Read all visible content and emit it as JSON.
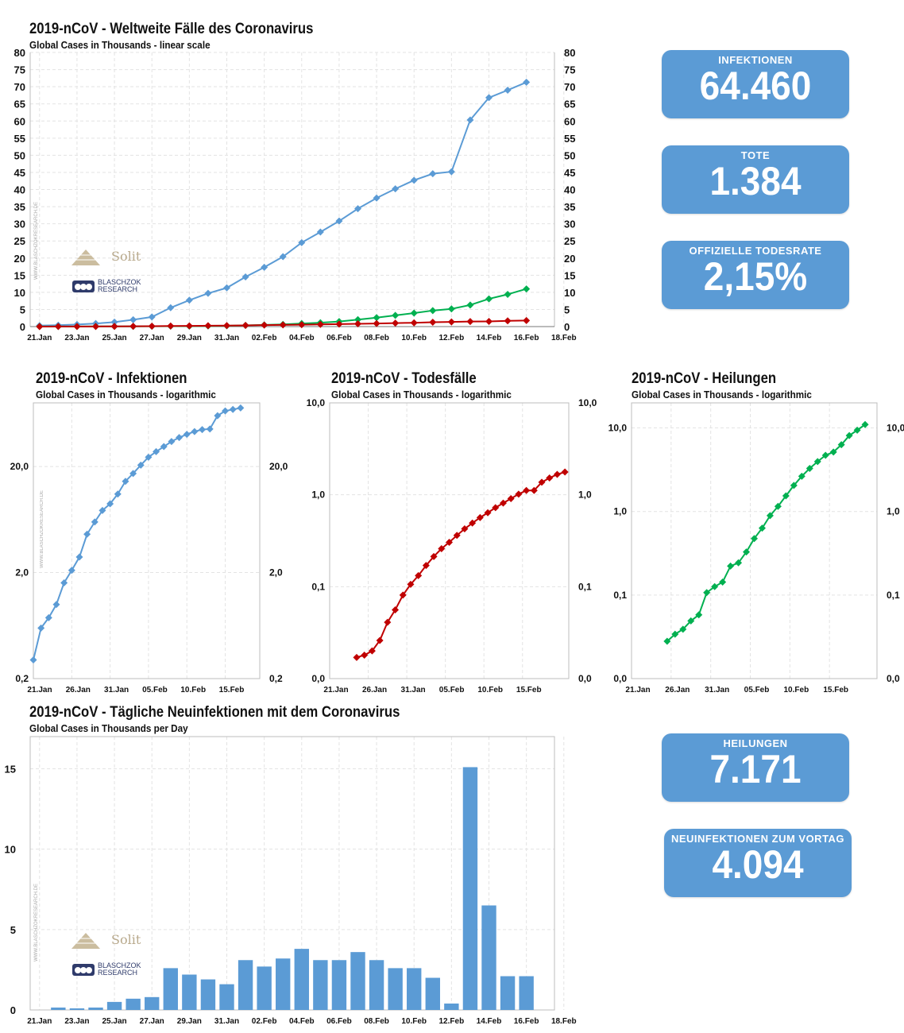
{
  "watermark": "WWW.BLASCHZOKRESEARCH.DE",
  "logos": {
    "solit": "Solit",
    "blaschzok_line1": "BLASCHZOK",
    "blaschzok_line2": "RESEARCH"
  },
  "colors": {
    "infections": "#5b9bd5",
    "deaths": "#c00000",
    "recovered": "#00b050",
    "card": "#5b9bd5"
  },
  "kpis": [
    {
      "label": "INFEKTIONEN",
      "value": "64.460"
    },
    {
      "label": "TOTE",
      "value": "1.384"
    },
    {
      "label": "OFFIZIELLE  TODESRATE",
      "value": "2,15%"
    },
    {
      "label": "HEILUNGEN",
      "value": "7.171"
    },
    {
      "label": "NEUINFEKTIONEN ZUM VORTAG",
      "value": "4.094"
    }
  ],
  "chart_data": [
    {
      "type": "line",
      "title": "2019-nCoV - Weltweite Fälle des Coronavirus",
      "subtitle": "Global Cases in Thousands - linear scale",
      "x_ticks": [
        "21.Jan",
        "23.Jan",
        "25.Jan",
        "27.Jan",
        "29.Jan",
        "31.Jan",
        "02.Feb",
        "04.Feb",
        "06.Feb",
        "08.Feb",
        "10.Feb",
        "12.Feb",
        "14.Feb",
        "16.Feb",
        "18.Feb"
      ],
      "x_range": [
        "21.Jan",
        "18.Feb"
      ],
      "ylim": [
        0,
        80
      ],
      "y_ticks": [
        0,
        5,
        10,
        15,
        20,
        25,
        30,
        35,
        40,
        45,
        50,
        55,
        60,
        65,
        70,
        75,
        80
      ],
      "grid": true,
      "series": [
        {
          "color": "#5b9bd5",
          "values": [
            0.3,
            0.4,
            0.6,
            0.9,
            1.3,
            2.0,
            2.8,
            5.5,
            7.7,
            9.7,
            11.3,
            14.5,
            17.3,
            20.4,
            24.5,
            27.6,
            30.8,
            34.4,
            37.5,
            40.2,
            42.7,
            44.6,
            45.2,
            60.3,
            66.8,
            69.0,
            71.3
          ]
        },
        {
          "color": "#00b050",
          "values": [
            0.02,
            0.03,
            0.04,
            0.05,
            0.06,
            0.07,
            0.1,
            0.11,
            0.13,
            0.18,
            0.24,
            0.34,
            0.48,
            0.63,
            0.89,
            1.12,
            1.49,
            2.03,
            2.61,
            3.28,
            3.94,
            4.68,
            5.15,
            6.3,
            8.1,
            9.4,
            11.0
          ]
        },
        {
          "color": "#c00000",
          "values": [
            0.009,
            0.017,
            0.026,
            0.04,
            0.06,
            0.08,
            0.13,
            0.17,
            0.21,
            0.26,
            0.3,
            0.36,
            0.43,
            0.49,
            0.56,
            0.64,
            0.72,
            0.81,
            0.91,
            1.02,
            1.11,
            1.27,
            1.36,
            1.49,
            1.52,
            1.67,
            1.78
          ]
        }
      ]
    },
    {
      "type": "line",
      "title": "2019-nCoV - Infektionen",
      "subtitle": "Global Cases in Thousands - logarithmic",
      "scale": "log",
      "x_ticks": [
        "21.Jan",
        "26.Jan",
        "31.Jan",
        "05.Feb",
        "10.Feb",
        "15.Feb"
      ],
      "y_ticks": [
        "0,2",
        "2,0",
        "20,0"
      ],
      "y_values": [
        0.2,
        2.0,
        20.0
      ],
      "grid": true,
      "series": [
        {
          "color": "#5b9bd5",
          "values": [
            0.3,
            0.6,
            0.75,
            1.0,
            1.6,
            2.1,
            2.8,
            4.6,
            6.0,
            7.7,
            8.9,
            11.0,
            14.5,
            17.2,
            20.6,
            24.5,
            27.6,
            30.8,
            34.4,
            37.5,
            40.2,
            42.7,
            44.6,
            45.2,
            60.3,
            66.8,
            69.0,
            71.3
          ]
        }
      ]
    },
    {
      "type": "line",
      "title": "2019-nCoV - Todesfälle",
      "subtitle": "Global Cases in Thousands - logarithmic",
      "scale": "log",
      "x_ticks": [
        "21.Jan",
        "26.Jan",
        "31.Jan",
        "05.Feb",
        "10.Feb",
        "15.Feb"
      ],
      "y_ticks": [
        "0,0",
        "0,1",
        "1,0",
        "10,0"
      ],
      "y_values": [
        0.01,
        0.1,
        1.0,
        10.0
      ],
      "grid": true,
      "series": [
        {
          "color": "#c00000",
          "values": [
            0.017,
            0.018,
            0.02,
            0.026,
            0.041,
            0.056,
            0.081,
            0.106,
            0.132,
            0.17,
            0.213,
            0.259,
            0.304,
            0.362,
            0.426,
            0.492,
            0.565,
            0.638,
            0.724,
            0.813,
            0.908,
            1.017,
            1.115,
            1.114,
            1.368,
            1.523,
            1.666,
            1.77
          ]
        }
      ]
    },
    {
      "type": "line",
      "title": "2019-nCoV - Heilungen",
      "subtitle": "Global Cases in Thousands - logarithmic",
      "scale": "log",
      "x_ticks": [
        "21.Jan",
        "26.Jan",
        "31.Jan",
        "05.Feb",
        "10.Feb",
        "15.Feb"
      ],
      "y_ticks": [
        "0,0",
        "0,1",
        "1,0",
        "10,0"
      ],
      "y_values": [
        0.01,
        0.1,
        1.0,
        10.0
      ],
      "grid": true,
      "series": [
        {
          "color": "#00b050",
          "values": [
            0.028,
            0.034,
            0.039,
            0.049,
            0.058,
            0.107,
            0.126,
            0.143,
            0.222,
            0.243,
            0.328,
            0.475,
            0.632,
            0.892,
            1.152,
            1.54,
            2.05,
            2.64,
            3.28,
            3.96,
            4.7,
            5.15,
            6.3,
            8.1,
            9.4,
            11.0
          ]
        }
      ]
    },
    {
      "type": "bar",
      "title": "2019-nCoV - Tägliche Neuinfektionen mit dem Coronavirus",
      "subtitle": "Global Cases in Thousands per Day",
      "x_ticks": [
        "21.Jan",
        "23.Jan",
        "25.Jan",
        "27.Jan",
        "29.Jan",
        "31.Jan",
        "02.Feb",
        "04.Feb",
        "06.Feb",
        "08.Feb",
        "10.Feb",
        "12.Feb",
        "14.Feb",
        "16.Feb",
        "18.Feb"
      ],
      "ylim": [
        0,
        17
      ],
      "y_ticks": [
        0,
        5,
        10,
        15
      ],
      "grid": true,
      "values": [
        0.15,
        0.1,
        0.15,
        0.5,
        0.7,
        0.8,
        2.6,
        2.2,
        1.9,
        1.6,
        3.1,
        2.7,
        3.2,
        3.8,
        3.1,
        3.1,
        3.6,
        3.1,
        2.6,
        2.6,
        2.0,
        0.4,
        15.1,
        6.5,
        2.1,
        2.1
      ]
    }
  ]
}
